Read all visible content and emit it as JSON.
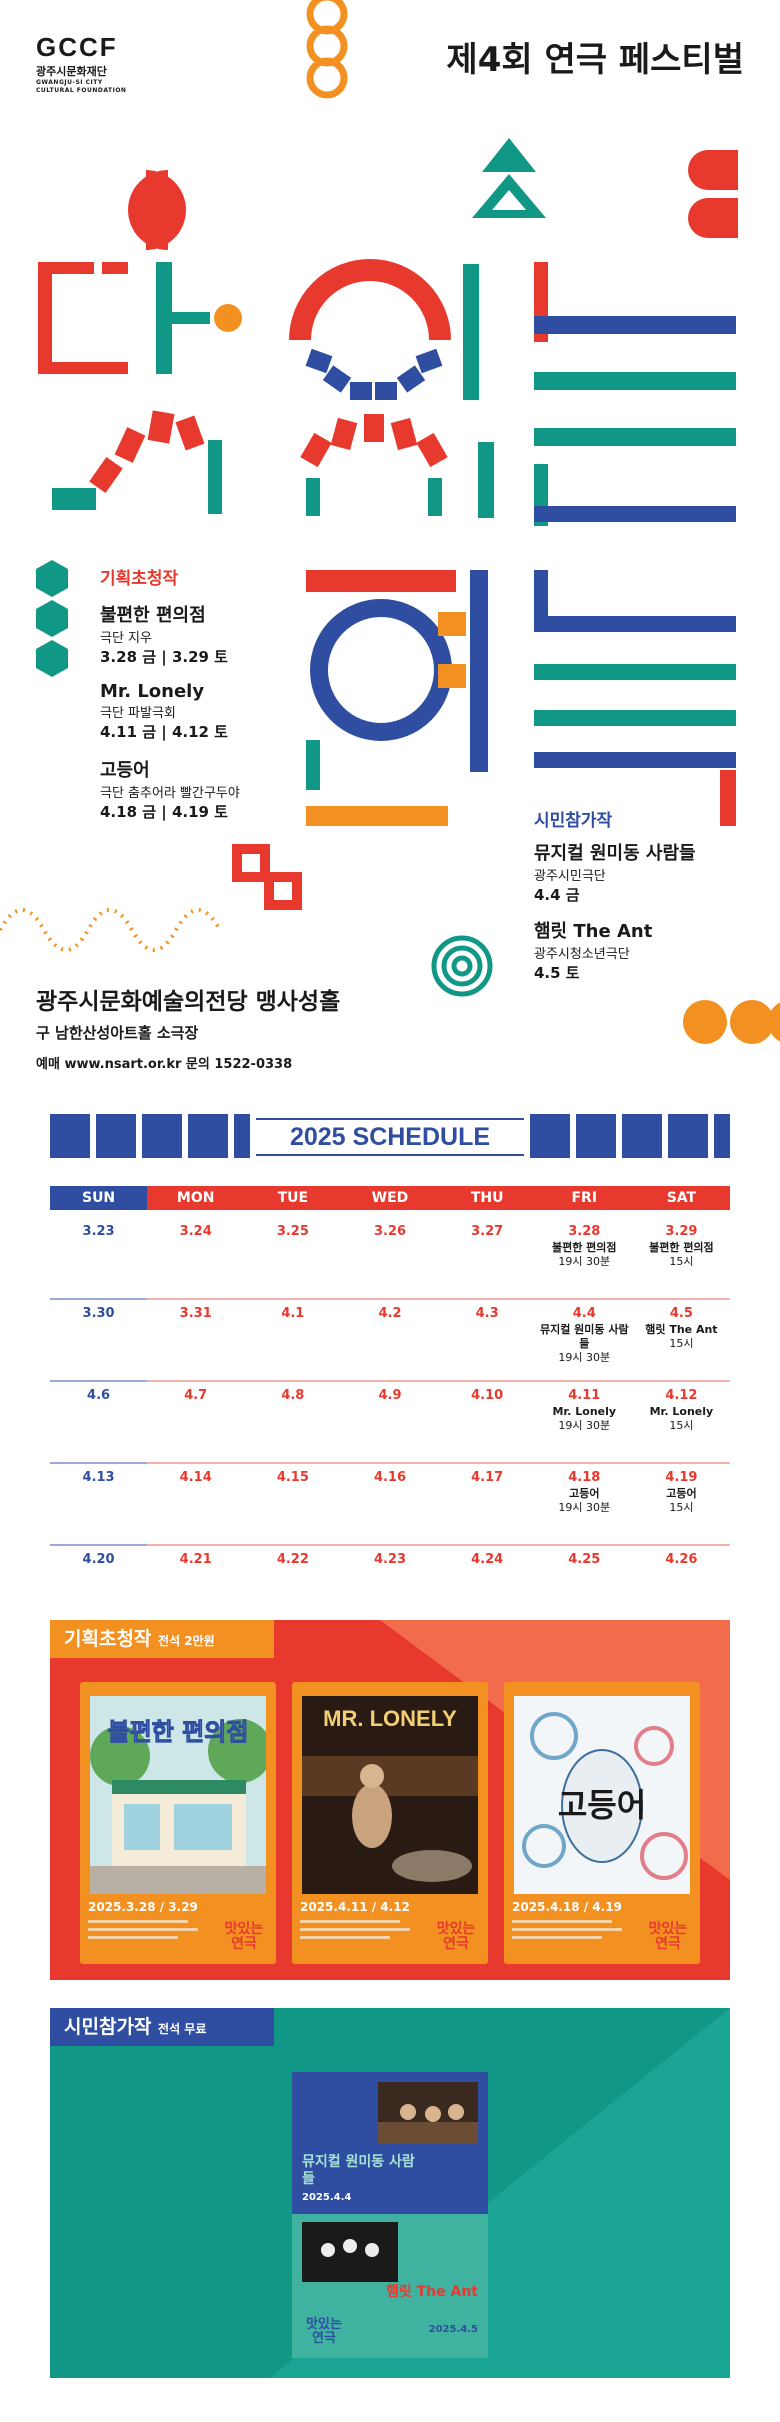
{
  "header": {
    "logo_mark": "GCCF",
    "logo_name": "광주시문화재단",
    "logo_en_1": "GWANGJU-SI CITY",
    "logo_en_2": "CULTURAL FOUNDATION",
    "title": "제4회 연극 페스티벌"
  },
  "invited": {
    "label": "기획초청작",
    "shows": [
      {
        "title": "불편한 편의점",
        "troupe": "극단 지우",
        "dates": "3.28 금 | 3.29 토"
      },
      {
        "title": "Mr. Lonely",
        "troupe": "극단 파발극회",
        "dates": "4.11 금 | 4.12 토"
      },
      {
        "title": "고등어",
        "troupe": "극단 춤추어라 빨간구두야",
        "dates": "4.18 금 | 4.19 토"
      }
    ]
  },
  "citizen": {
    "label": "시민참가작",
    "shows": [
      {
        "title": "뮤지컬 원미동 사람들",
        "troupe": "광주시민극단",
        "dates": "4.4 금"
      },
      {
        "title": "햄릿 The Ant",
        "troupe": "광주시청소년극단",
        "dates": "4.5 토"
      }
    ]
  },
  "venue": {
    "name": "광주시문화예술의전당 맹사성홀",
    "sub": "구 남한산성아트홀 소극장",
    "contact": "예매 www.nsart.or.kr  문의 1522-0338"
  },
  "schedule": {
    "title": "2025 SCHEDULE",
    "days": [
      "SUN",
      "MON",
      "TUE",
      "WED",
      "THU",
      "FRI",
      "SAT"
    ],
    "weeks": [
      [
        {
          "d": "3.23"
        },
        {
          "d": "3.24"
        },
        {
          "d": "3.25"
        },
        {
          "d": "3.26"
        },
        {
          "d": "3.27"
        },
        {
          "d": "3.28",
          "e": "불편한 편의점",
          "t": "19시 30분"
        },
        {
          "d": "3.29",
          "e": "불편한 편의점",
          "t": "15시"
        }
      ],
      [
        {
          "d": "3.30"
        },
        {
          "d": "3.31"
        },
        {
          "d": "4.1"
        },
        {
          "d": "4.2"
        },
        {
          "d": "4.3"
        },
        {
          "d": "4.4",
          "e": "뮤지컬 원미동 사람들",
          "t": "19시 30분"
        },
        {
          "d": "4.5",
          "e": "햄릿 The Ant",
          "t": "15시"
        }
      ],
      [
        {
          "d": "4.6"
        },
        {
          "d": "4.7"
        },
        {
          "d": "4.8"
        },
        {
          "d": "4.9"
        },
        {
          "d": "4.10"
        },
        {
          "d": "4.11",
          "e": "Mr. Lonely",
          "t": "19시 30분"
        },
        {
          "d": "4.12",
          "e": "Mr. Lonely",
          "t": "15시"
        }
      ],
      [
        {
          "d": "4.13"
        },
        {
          "d": "4.14"
        },
        {
          "d": "4.15"
        },
        {
          "d": "4.16"
        },
        {
          "d": "4.17"
        },
        {
          "d": "4.18",
          "e": "고등어",
          "t": "19시 30분"
        },
        {
          "d": "4.19",
          "e": "고등어",
          "t": "15시"
        }
      ],
      [
        {
          "d": "4.20"
        },
        {
          "d": "4.21"
        },
        {
          "d": "4.22"
        },
        {
          "d": "4.23"
        },
        {
          "d": "4.24"
        },
        {
          "d": "4.25"
        },
        {
          "d": "4.26"
        }
      ]
    ]
  },
  "panel_invited": {
    "label": "기획초청작",
    "price": "전석 2만원",
    "posters": [
      {
        "title": "불편한 편의점",
        "date": "2025.3.28 / 3.29"
      },
      {
        "title": "MR. LONELY",
        "date": "2025.4.11 / 4.12"
      },
      {
        "title": "고등어",
        "date": "2025.4.18 / 4.19"
      }
    ]
  },
  "panel_citizen": {
    "label": "시민참가작",
    "price": "전석 무료",
    "posters": [
      {
        "title": "뮤지컬 원미동 사람들",
        "date": "2025.4.4"
      },
      {
        "title": "햄릿 The Ant",
        "date": "2025.4.5"
      }
    ]
  },
  "poster_mark": "맛있는 연극",
  "colors": {
    "red": "#e8392f",
    "orange": "#f29122",
    "teal": "#119786",
    "blue": "#2f4ea2"
  }
}
